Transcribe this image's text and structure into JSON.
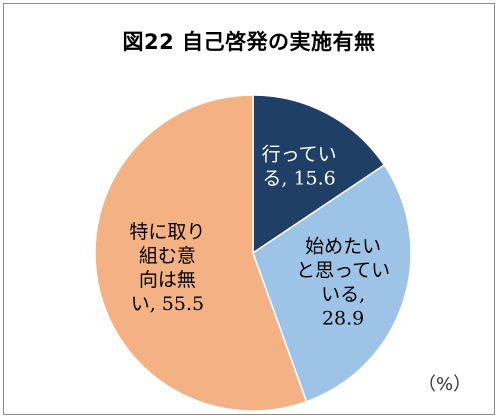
{
  "chart_data": {
    "type": "pie",
    "title": "図22 自己啓発の実施有無",
    "unit": "（%）",
    "slices": [
      {
        "label": "行っている",
        "value": 15.6,
        "lines": [
          "行ってい",
          "る, 15.6"
        ],
        "color": "#1f3f66",
        "text_color": "#ffffff"
      },
      {
        "label": "始めたいと思っている",
        "value": 28.9,
        "lines": [
          "始めたい",
          "と思ってい",
          "いる,",
          "28.9"
        ],
        "color": "#9dc3e6",
        "text_color": "#000000"
      },
      {
        "label": "特に取り組む意向は無い",
        "value": 55.5,
        "lines": [
          "特に取り",
          "組む意",
          "向は無",
          "い, 55.5"
        ],
        "color": "#f4b183",
        "text_color": "#000000"
      }
    ],
    "start_angle_deg": 0,
    "direction": "clockwise",
    "legend": "none"
  }
}
